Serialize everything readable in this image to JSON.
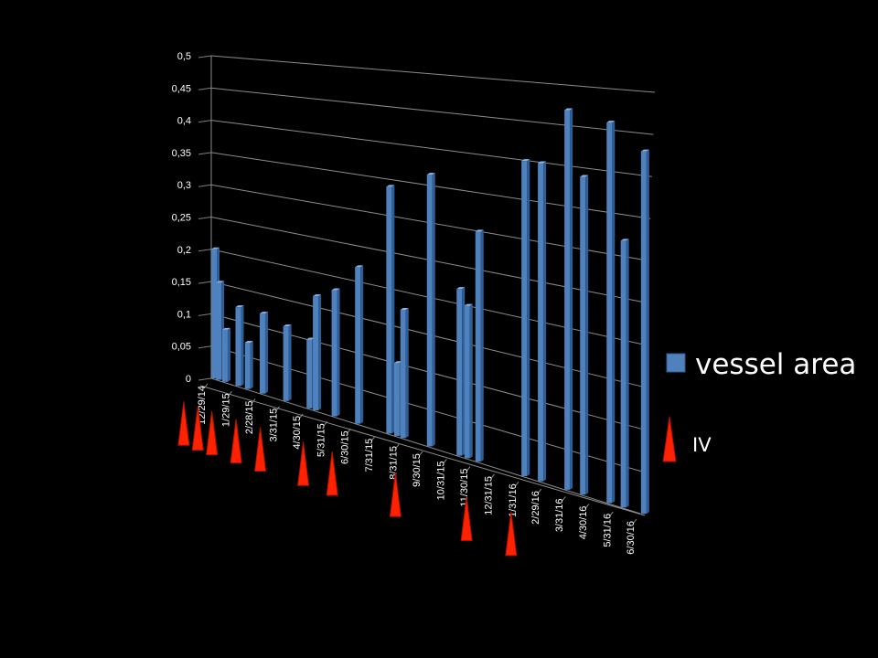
{
  "chart_data": {
    "type": "bar",
    "title": "",
    "xlabel": "",
    "ylabel": "",
    "ylim": [
      0,
      0.5
    ],
    "y_ticks": [
      "0",
      "0,05",
      "0,1",
      "0,15",
      "0,2",
      "0,25",
      "0,3",
      "0,35",
      "0,4",
      "0,45",
      "0,5"
    ],
    "x_ticks": [
      "12/29/14",
      "1/29/15",
      "2/28/15",
      "3/31/15",
      "4/30/15",
      "5/31/15",
      "6/30/15",
      "7/31/15",
      "8/31/15",
      "9/30/15",
      "10/31/15",
      "11/30/15",
      "12/31/15",
      "1/31/16",
      "2/29/16",
      "3/31/16",
      "4/30/16",
      "5/31/16",
      "6/30/16"
    ],
    "grid": true,
    "legend_position": "right",
    "series": [
      {
        "name": "vessel area",
        "color": "#4f81bd",
        "points": [
          {
            "x": "12/29/14",
            "y": 0.2
          },
          {
            "x": "1/4/15",
            "y": 0.15
          },
          {
            "x": "1/12/15",
            "y": 0.08
          },
          {
            "x": "1/29/15",
            "y": 0.12
          },
          {
            "x": "2/10/15",
            "y": 0.07
          },
          {
            "x": "3/1/15",
            "y": 0.12
          },
          {
            "x": "3/31/15",
            "y": 0.11
          },
          {
            "x": "4/30/15",
            "y": 0.1
          },
          {
            "x": "5/8/15",
            "y": 0.165
          },
          {
            "x": "6/1/15",
            "y": 0.18
          },
          {
            "x": "7/1/15",
            "y": 0.22
          },
          {
            "x": "8/10/15",
            "y": 0.34
          },
          {
            "x": "8/20/15",
            "y": 0.1
          },
          {
            "x": "8/28/15",
            "y": 0.175
          },
          {
            "x": "10/1/15",
            "y": 0.365
          },
          {
            "x": "11/8/15",
            "y": 0.22
          },
          {
            "x": "11/18/15",
            "y": 0.2
          },
          {
            "x": "12/2/15",
            "y": 0.3
          },
          {
            "x": "1/30/16",
            "y": 0.4
          },
          {
            "x": "2/20/16",
            "y": 0.4
          },
          {
            "x": "3/25/16",
            "y": 0.47
          },
          {
            "x": "4/14/16",
            "y": 0.39
          },
          {
            "x": "5/18/16",
            "y": 0.46
          },
          {
            "x": "6/5/16",
            "y": 0.32
          },
          {
            "x": "7/1/16",
            "y": 0.43
          }
        ]
      }
    ],
    "markers": {
      "name": "IV",
      "color": "#ff2200",
      "dates": [
        "12/23/14",
        "1/10/15",
        "1/28/15",
        "2/28/15",
        "3/31/15",
        "5/25/15",
        "7/1/15",
        "9/20/15",
        "12/20/15",
        "2/15/16"
      ]
    }
  }
}
